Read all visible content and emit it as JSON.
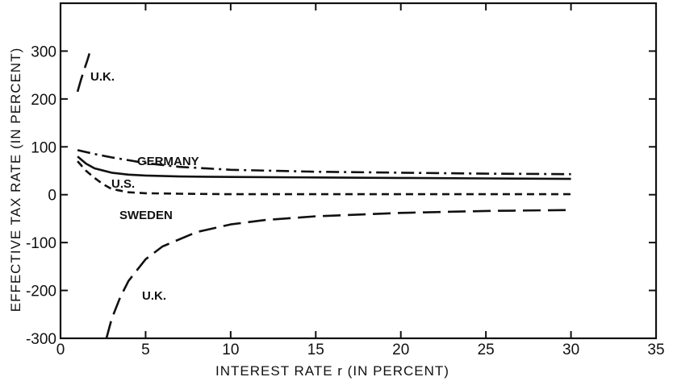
{
  "chart_data": {
    "type": "line",
    "title": "",
    "xlabel": "INTEREST RATE r (IN PERCENT)",
    "ylabel": "EFFECTIVE TAX RATE (IN PERCENT)",
    "xlim": [
      0,
      35
    ],
    "ylim": [
      -300,
      400
    ],
    "xticks": [
      0,
      5,
      10,
      15,
      20,
      25,
      30,
      35
    ],
    "yticks": [
      -300,
      -200,
      -100,
      0,
      100,
      200,
      300
    ],
    "grid": false,
    "legend": "none (series labeled directly on curves)",
    "series": [
      {
        "name": "U.K.",
        "style": "long-dash",
        "x": [
          1.0,
          1.2,
          1.4,
          1.6,
          1.7
        ],
        "y": [
          215,
          240,
          262,
          283,
          295
        ]
      },
      {
        "name": "GERMANY",
        "style": "dash-dot",
        "x": [
          1,
          2,
          3,
          4,
          5,
          7,
          10,
          15,
          20,
          25,
          30
        ],
        "y": [
          93,
          85,
          78,
          72,
          66,
          58,
          52,
          48,
          46,
          44,
          43
        ]
      },
      {
        "name": "U.S.",
        "style": "solid",
        "x": [
          1,
          1.5,
          2,
          3,
          4,
          5,
          7,
          10,
          15,
          20,
          25,
          30
        ],
        "y": [
          80,
          65,
          55,
          46,
          42,
          40,
          38,
          37,
          36,
          35,
          34,
          33
        ]
      },
      {
        "name": "SWEDEN",
        "style": "short-dash",
        "x": [
          1,
          1.5,
          2,
          2.5,
          3,
          4,
          5,
          7,
          10,
          15,
          20,
          30
        ],
        "y": [
          70,
          50,
          35,
          22,
          12,
          5,
          3,
          2,
          1,
          1,
          1,
          1
        ]
      },
      {
        "name": "U.K.",
        "style": "long-dash",
        "x": [
          2.7,
          3,
          3.5,
          4,
          5,
          6,
          8,
          10,
          12,
          15,
          20,
          25,
          30
        ],
        "y": [
          -300,
          -260,
          -215,
          -180,
          -135,
          -108,
          -78,
          -62,
          -53,
          -45,
          -38,
          -34,
          -32
        ]
      }
    ]
  }
}
